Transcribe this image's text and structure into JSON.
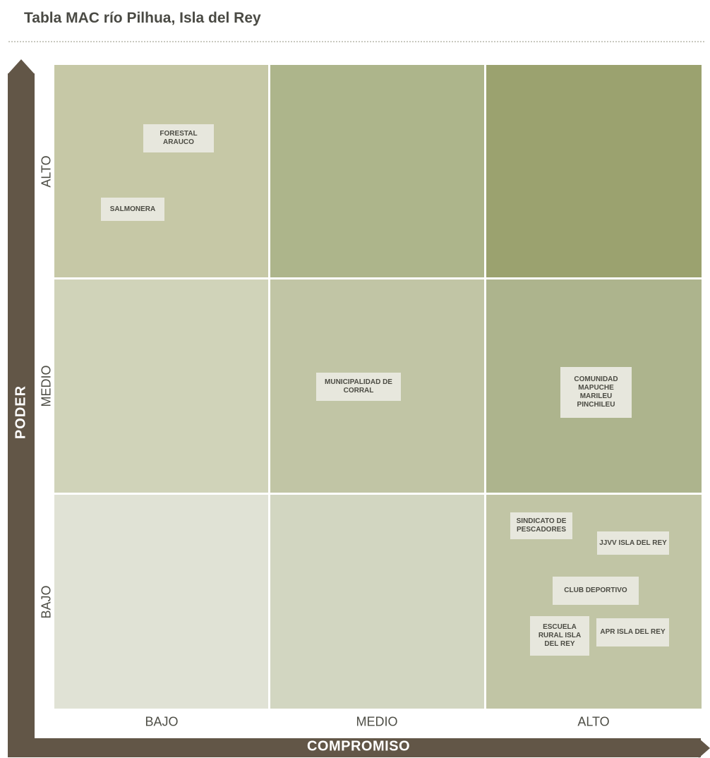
{
  "title": "Tabla MAC río Pilhua, Isla del Rey",
  "axes": {
    "y_title": "PODER",
    "x_title": "COMPROMISO",
    "y_levels": [
      "ALTO",
      "MEDIO",
      "BAJO"
    ],
    "x_levels": [
      "BAJO",
      "MEDIO",
      "ALTO"
    ]
  },
  "colors": {
    "axis": "#625647",
    "cells": [
      [
        "#c6c8a6",
        "#adb58b",
        "#9ba26f"
      ],
      [
        "#d0d3b9",
        "#c1c5a5",
        "#adb48d"
      ],
      [
        "#e0e2d5",
        "#d2d6c1",
        "#c1c5a5"
      ]
    ],
    "actor_box": "#e7e7dd"
  },
  "actors": [
    {
      "label": "FORESTAL\nARAUCO",
      "poder": "ALTO",
      "compromiso": "BAJO"
    },
    {
      "label": "SALMONERA",
      "poder": "ALTO",
      "compromiso": "BAJO"
    },
    {
      "label": "MUNICIPALIDAD DE\nCORRAL",
      "poder": "MEDIO",
      "compromiso": "MEDIO"
    },
    {
      "label": "COMUNIDAD\nMAPUCHE\nMARILEU\nPINCHILEU",
      "poder": "MEDIO",
      "compromiso": "ALTO"
    },
    {
      "label": "SINDICATO DE\nPESCADORES",
      "poder": "BAJO",
      "compromiso": "ALTO"
    },
    {
      "label": "JJVV ISLA DEL REY",
      "poder": "BAJO",
      "compromiso": "ALTO"
    },
    {
      "label": "CLUB DEPORTIVO",
      "poder": "BAJO",
      "compromiso": "ALTO"
    },
    {
      "label": "ESCUELA\nRURAL ISLA\nDEL REY",
      "poder": "BAJO",
      "compromiso": "ALTO"
    },
    {
      "label": "APR ISLA DEL REY",
      "poder": "BAJO",
      "compromiso": "ALTO"
    }
  ]
}
